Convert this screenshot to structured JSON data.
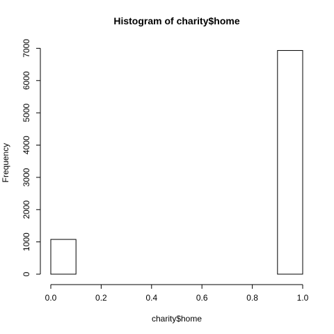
{
  "chart_data": {
    "type": "bar",
    "title": "Histogram of charity$home",
    "xlabel": "charity$home",
    "ylabel": "Frequency",
    "bins": [
      {
        "x0": 0.0,
        "x1": 0.1,
        "count": 1077
      },
      {
        "x0": 0.1,
        "x1": 0.2,
        "count": 0
      },
      {
        "x0": 0.2,
        "x1": 0.3,
        "count": 0
      },
      {
        "x0": 0.3,
        "x1": 0.4,
        "count": 0
      },
      {
        "x0": 0.4,
        "x1": 0.5,
        "count": 0
      },
      {
        "x0": 0.5,
        "x1": 0.6,
        "count": 0
      },
      {
        "x0": 0.6,
        "x1": 0.7,
        "count": 0
      },
      {
        "x0": 0.7,
        "x1": 0.8,
        "count": 0
      },
      {
        "x0": 0.8,
        "x1": 0.9,
        "count": 0
      },
      {
        "x0": 0.9,
        "x1": 1.0,
        "count": 6932
      }
    ],
    "xlim": [
      0,
      1
    ],
    "ylim": [
      0,
      7000
    ],
    "x_ticks": [
      "0.0",
      "0.2",
      "0.4",
      "0.6",
      "0.8",
      "1.0"
    ],
    "y_ticks": [
      "0",
      "1000",
      "2000",
      "3000",
      "4000",
      "5000",
      "6000",
      "7000"
    ],
    "grid": false
  }
}
